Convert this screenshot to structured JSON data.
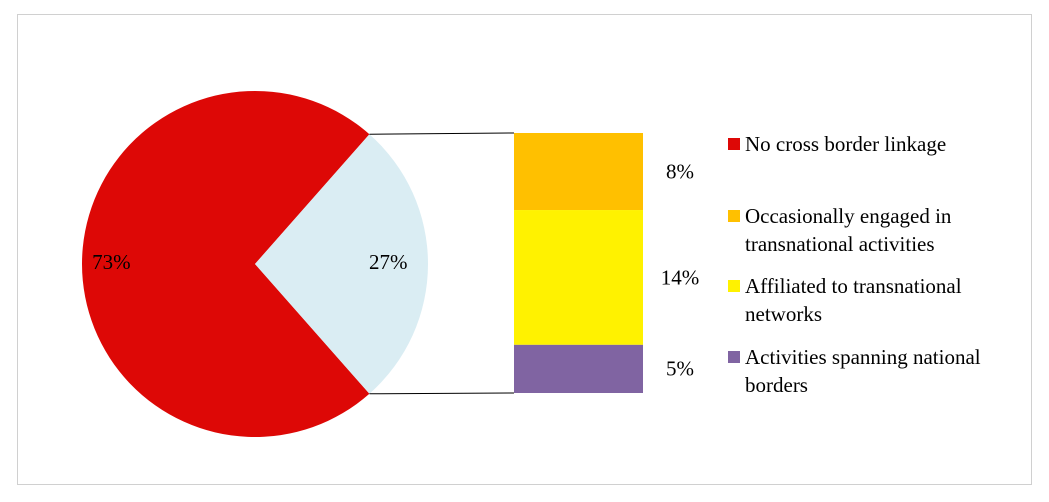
{
  "chart_data": {
    "type": "pie",
    "categories": [
      "No cross border linkage",
      null
    ],
    "values": [
      73,
      27
    ],
    "value_labels": [
      "73%",
      "27%"
    ],
    "colors": [
      "#dd0806",
      "#daedf3"
    ],
    "breakdown": {
      "categories": [
        "Occasionally engaged in transnational activities",
        "Affiliated to transnational networks",
        "Activities spanning national borders"
      ],
      "values": [
        8,
        14,
        5
      ],
      "value_labels": [
        "8%",
        "14%",
        "5%"
      ],
      "colors": [
        "#ffc000",
        "#fff200",
        "#8064a2"
      ]
    }
  }
}
